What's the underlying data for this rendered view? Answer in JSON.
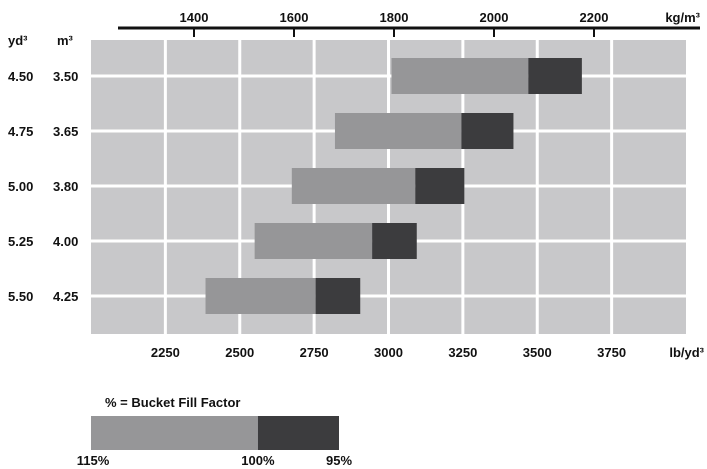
{
  "chart_data": {
    "type": "bar",
    "subtype": "floating-range",
    "title": "",
    "orientation": "horizontal",
    "top_axis": {
      "unit": "kg/m³",
      "ticks": [
        "1400",
        "1600",
        "1800",
        "2000",
        "2200"
      ],
      "tick_values": [
        1400,
        1600,
        1800,
        2000,
        2200
      ]
    },
    "bottom_axis": {
      "unit": "lb/yd³",
      "ticks": [
        "2250",
        "2500",
        "2750",
        "3000",
        "3250",
        "3500",
        "3750"
      ],
      "tick_values": [
        2250,
        2500,
        2750,
        3000,
        3250,
        3500,
        3750
      ],
      "range": [
        2000,
        4000
      ]
    },
    "row_headers": {
      "yd3": "yd³",
      "m3": "m³"
    },
    "rows": [
      {
        "yd3": "4.50",
        "m3": "3.50",
        "start_115": 3010,
        "mid_100": 3470,
        "end_95": 3650
      },
      {
        "yd3": "4.75",
        "m3": "3.65",
        "start_115": 2820,
        "mid_100": 3245,
        "end_95": 3420
      },
      {
        "yd3": "5.00",
        "m3": "3.80",
        "start_115": 2675,
        "mid_100": 3090,
        "end_95": 3255
      },
      {
        "yd3": "5.25",
        "m3": "4.00",
        "start_115": 2550,
        "mid_100": 2945,
        "end_95": 3095
      },
      {
        "yd3": "5.50",
        "m3": "4.25",
        "start_115": 2385,
        "mid_100": 2755,
        "end_95": 2905
      }
    ],
    "colors": {
      "plot_bg": "#c8c8ca",
      "grid": "#ffffff",
      "fill_light": "#969698",
      "fill_dark": "#3c3c3e"
    },
    "grid": true
  },
  "legend": {
    "title": "% = Bucket Fill Factor",
    "labels": [
      "115%",
      "100%",
      "95%"
    ],
    "split": [
      0.673,
      1.0
    ]
  }
}
